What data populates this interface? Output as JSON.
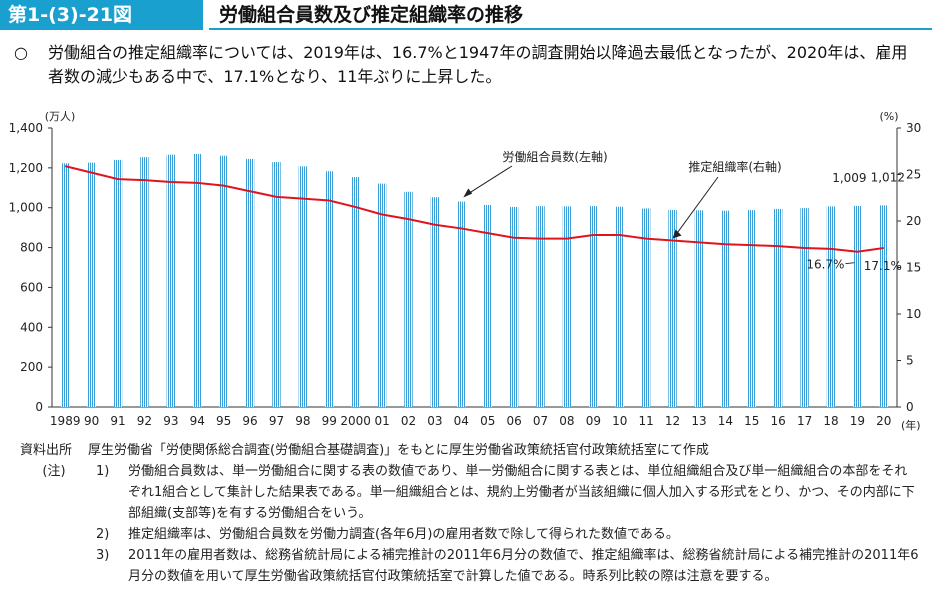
{
  "header": {
    "figure_number": "第1-(3)-21図",
    "title": "労働組合員数及び推定組織率の推移"
  },
  "summary": {
    "bullet": "○",
    "text": "労働組合の推定組織率については、2019年は、16.7%と1947年の調査開始以降過去最低となったが、2020年は、雇用者数の減少もある中で、17.1%となり、11年ぶりに上昇した。"
  },
  "chart_data": {
    "type": "bar",
    "categories": [
      "1989",
      "90",
      "91",
      "92",
      "93",
      "94",
      "95",
      "96",
      "97",
      "98",
      "99",
      "2000",
      "01",
      "02",
      "03",
      "04",
      "05",
      "06",
      "07",
      "08",
      "09",
      "10",
      "11",
      "12",
      "13",
      "14",
      "15",
      "16",
      "17",
      "18",
      "19",
      "20"
    ],
    "x_unit": "(年)",
    "series": [
      {
        "name": "労働組合員数(左軸)",
        "axis": "left",
        "type": "bar",
        "values": [
          1223,
          1226,
          1240,
          1254,
          1266,
          1270,
          1261,
          1245,
          1229,
          1208,
          1183,
          1154,
          1121,
          1080,
          1053,
          1031,
          1014,
          1004,
          1008,
          1007,
          1008,
          1005,
          996,
          989,
          987,
          985,
          988,
          994,
          998,
          1007,
          1009,
          1012
        ]
      },
      {
        "name": "推定組織率(右軸)",
        "axis": "right",
        "type": "line",
        "values": [
          25.9,
          25.2,
          24.5,
          24.4,
          24.2,
          24.1,
          23.8,
          23.2,
          22.6,
          22.4,
          22.2,
          21.5,
          20.7,
          20.2,
          19.6,
          19.2,
          18.7,
          18.2,
          18.1,
          18.1,
          18.5,
          18.5,
          18.1,
          17.9,
          17.7,
          17.5,
          17.4,
          17.3,
          17.1,
          17.0,
          16.7,
          17.1
        ]
      }
    ],
    "left_axis": {
      "unit": "(万人)",
      "ylim": [
        0,
        1400
      ],
      "ticks": [
        "0",
        "200",
        "400",
        "600",
        "800",
        "1,000",
        "1,200",
        "1,400"
      ]
    },
    "right_axis": {
      "unit": "(%)",
      "ylim": [
        0,
        30
      ],
      "ticks": [
        "0",
        "5",
        "10",
        "15",
        "20",
        "25",
        "30"
      ]
    },
    "annotations": {
      "bar_series_label": "労働組合員数(左軸)",
      "line_series_label": "推定組織率(右軸)",
      "bar_value_2019": "1,009",
      "bar_value_2020": "1,012",
      "rate_2019": "16.7%",
      "rate_2020": "17.1%"
    },
    "colors": {
      "bar_fill": "#ffffff",
      "bar_hatch": "#3a9fd8",
      "line": "#e0141e"
    }
  },
  "notes": {
    "source_label": "資料出所",
    "source_text": "厚生労働省「労使関係総合調査(労働組合基礎調査)」をもとに厚生労働省政策統括官付政策統括室にて作成",
    "notes_label": "(注)",
    "items": [
      {
        "num": "1)",
        "text": "労働組合員数は、単一労働組合に関する表の数値であり、単一労働組合に関する表とは、単位組織組合及び単一組織組合の本部をそれぞれ1組合として集計した結果表である。単一組織組合とは、規約上労働者が当該組織に個人加入する形式をとり、かつ、その内部に下部組織(支部等)を有する労働組合をいう。"
      },
      {
        "num": "2)",
        "text": "推定組織率は、労働組合員数を労働力調査(各年6月)の雇用者数で除して得られた数値である。"
      },
      {
        "num": "3)",
        "text": "2011年の雇用者数は、総務省統計局による補完推計の2011年6月分の数値で、推定組織率は、総務省統計局による補完推計の2011年6月分の数値を用いて厚生労働省政策統括官付政策統括室で計算した値である。時系列比較の際は注意を要する。"
      }
    ]
  }
}
